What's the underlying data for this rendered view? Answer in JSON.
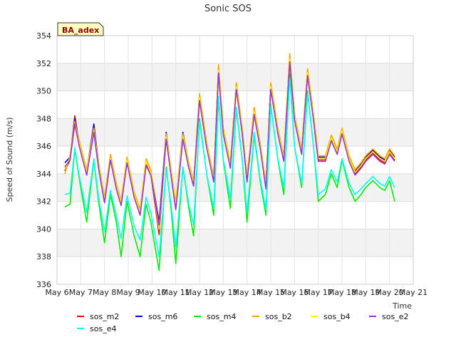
{
  "chart_data": {
    "type": "line",
    "title": "Sonic SOS",
    "xlabel": "Time",
    "ylabel": "Speed of Sound (m/s)",
    "annotation": "BA_adex",
    "grid": true,
    "legend_position": "bottom",
    "xlim": [
      6,
      21
    ],
    "ylim": [
      336,
      354
    ],
    "x_ticks": [
      6,
      7,
      8,
      9,
      10,
      11,
      12,
      13,
      14,
      15,
      16,
      17,
      18,
      19,
      20,
      21
    ],
    "x_tick_labels": [
      "May 6",
      "May 7",
      "May 8",
      "May 9",
      "May 10",
      "May 11",
      "May 12",
      "May 13",
      "May 14",
      "May 15",
      "May 16",
      "May 17",
      "May 18",
      "May 19",
      "May 20",
      "May 21"
    ],
    "y_ticks": [
      336,
      338,
      340,
      342,
      344,
      346,
      348,
      350,
      352,
      354
    ],
    "x": [
      6.33,
      6.55,
      6.75,
      6.95,
      7.25,
      7.55,
      7.75,
      8.0,
      8.25,
      8.5,
      8.7,
      8.95,
      9.25,
      9.5,
      9.75,
      9.95,
      10.3,
      10.6,
      10.8,
      11.0,
      11.3,
      11.55,
      11.75,
      12.0,
      12.3,
      12.6,
      12.8,
      13.0,
      13.3,
      13.55,
      13.8,
      14.0,
      14.3,
      14.55,
      14.8,
      15.0,
      15.3,
      15.55,
      15.8,
      16.0,
      16.3,
      16.55,
      16.8,
      17.0,
      17.3,
      17.55,
      17.8,
      18.0,
      18.3,
      18.55,
      18.8,
      19.0,
      19.3,
      19.6,
      19.8,
      20.0,
      20.22
    ],
    "series": [
      {
        "name": "sos_m2",
        "color": "#ff0000",
        "values": [
          344.2,
          345.0,
          348.2,
          346.0,
          344.0,
          347.5,
          344.5,
          342.0,
          345.2,
          343.0,
          341.8,
          345.0,
          342.5,
          341.2,
          344.8,
          344.0,
          339.6,
          346.8,
          344.0,
          341.5,
          346.8,
          344.5,
          343.2,
          349.6,
          346.0,
          343.5,
          351.6,
          347.0,
          344.5,
          350.4,
          347.0,
          343.5,
          348.6,
          346.0,
          343.0,
          350.4,
          347.0,
          345.0,
          352.4,
          348.0,
          345.5,
          351.4,
          348.0,
          345.0,
          345.0,
          346.5,
          345.5,
          347.0,
          345.0,
          344.0,
          344.5,
          345.0,
          345.5,
          345.0,
          344.8,
          345.5,
          345.0
        ]
      },
      {
        "name": "sos_m6",
        "color": "#0000cc",
        "values": [
          344.8,
          345.2,
          348.0,
          346.2,
          344.2,
          347.6,
          344.8,
          342.2,
          345.3,
          343.2,
          342.0,
          345.1,
          342.6,
          341.3,
          345.0,
          344.2,
          340.5,
          347.0,
          344.2,
          341.8,
          347.0,
          344.7,
          343.4,
          349.7,
          346.2,
          343.7,
          351.7,
          347.2,
          344.7,
          350.5,
          347.2,
          343.7,
          348.7,
          346.2,
          343.2,
          350.5,
          347.2,
          345.2,
          352.5,
          348.2,
          345.7,
          351.5,
          348.2,
          345.2,
          345.2,
          346.7,
          345.7,
          347.2,
          345.2,
          344.2,
          344.7,
          345.2,
          345.7,
          345.2,
          345.0,
          345.7,
          345.2
        ]
      },
      {
        "name": "sos_m4",
        "color": "#00ee00",
        "values": [
          341.6,
          341.8,
          345.8,
          343.5,
          340.5,
          345.0,
          342.0,
          339.0,
          342.5,
          340.5,
          338.0,
          342.0,
          339.5,
          338.0,
          341.8,
          340.5,
          337.0,
          344.5,
          341.5,
          337.5,
          344.5,
          341.5,
          339.5,
          348.0,
          344.0,
          341.0,
          349.5,
          345.0,
          341.5,
          348.7,
          345.0,
          340.5,
          346.8,
          343.5,
          341.0,
          349.0,
          345.0,
          342.5,
          351.2,
          346.0,
          343.0,
          350.0,
          346.0,
          342.0,
          342.5,
          344.0,
          343.0,
          345.0,
          343.0,
          342.0,
          342.5,
          343.0,
          343.5,
          343.0,
          342.8,
          343.5,
          342.0
        ]
      },
      {
        "name": "sos_b2",
        "color": "#ffa500",
        "values": [
          344.0,
          345.3,
          347.8,
          346.3,
          344.3,
          347.3,
          344.8,
          342.3,
          345.4,
          343.3,
          342.1,
          345.2,
          342.7,
          341.4,
          345.1,
          344.3,
          340.2,
          346.9,
          344.3,
          341.9,
          346.9,
          344.8,
          343.5,
          349.8,
          346.3,
          343.8,
          351.9,
          347.3,
          344.8,
          350.6,
          347.3,
          343.8,
          348.8,
          346.3,
          343.3,
          350.6,
          347.3,
          345.3,
          352.7,
          348.3,
          345.8,
          351.6,
          348.3,
          345.3,
          345.3,
          346.8,
          345.8,
          347.3,
          345.3,
          344.3,
          344.8,
          345.3,
          345.8,
          345.3,
          345.1,
          345.8,
          345.3
        ]
      },
      {
        "name": "sos_b4",
        "color": "#ffff00",
        "values": [
          344.4,
          345.1,
          347.6,
          346.1,
          344.1,
          347.1,
          344.6,
          342.1,
          345.1,
          343.1,
          341.9,
          345.0,
          342.5,
          341.2,
          344.9,
          344.1,
          340.0,
          346.7,
          344.1,
          341.7,
          346.7,
          344.6,
          343.3,
          349.5,
          346.1,
          343.6,
          351.5,
          347.1,
          344.6,
          350.3,
          347.1,
          343.6,
          348.5,
          346.1,
          343.1,
          350.3,
          347.1,
          345.1,
          352.3,
          348.1,
          345.6,
          351.3,
          348.1,
          345.1,
          345.1,
          346.6,
          345.6,
          347.1,
          345.1,
          344.1,
          344.6,
          345.1,
          345.6,
          345.1,
          344.9,
          345.6,
          345.1
        ]
      },
      {
        "name": "sos_e2",
        "color": "#9933cc",
        "values": [
          344.5,
          345.0,
          347.6,
          345.9,
          343.9,
          347.0,
          344.4,
          341.9,
          345.0,
          342.9,
          341.7,
          344.8,
          342.3,
          341.0,
          344.6,
          343.9,
          340.3,
          346.5,
          343.9,
          341.4,
          346.5,
          344.4,
          343.1,
          349.3,
          345.9,
          343.4,
          351.3,
          346.9,
          344.4,
          350.1,
          346.9,
          343.4,
          348.3,
          345.9,
          342.9,
          350.1,
          346.9,
          344.9,
          352.1,
          347.9,
          345.4,
          351.1,
          347.9,
          344.9,
          344.9,
          346.4,
          345.4,
          346.9,
          344.9,
          343.9,
          344.4,
          344.9,
          345.4,
          344.9,
          344.7,
          345.4,
          344.9
        ]
      },
      {
        "name": "sos_e4",
        "color": "#00ffff",
        "values": [
          342.5,
          342.6,
          345.9,
          343.7,
          341.2,
          345.1,
          342.3,
          339.8,
          342.8,
          341.0,
          339.3,
          342.4,
          340.2,
          339.2,
          342.3,
          341.2,
          338.0,
          344.3,
          341.8,
          338.7,
          344.5,
          341.8,
          340.3,
          347.8,
          344.0,
          341.5,
          349.6,
          345.1,
          342.2,
          348.8,
          345.1,
          341.2,
          347.0,
          343.7,
          341.4,
          348.9,
          345.1,
          343.0,
          350.9,
          346.0,
          343.3,
          349.8,
          346.0,
          342.5,
          342.9,
          344.3,
          343.4,
          345.1,
          343.3,
          342.5,
          342.9,
          343.3,
          343.8,
          343.3,
          343.1,
          343.8,
          343.0
        ]
      }
    ]
  }
}
